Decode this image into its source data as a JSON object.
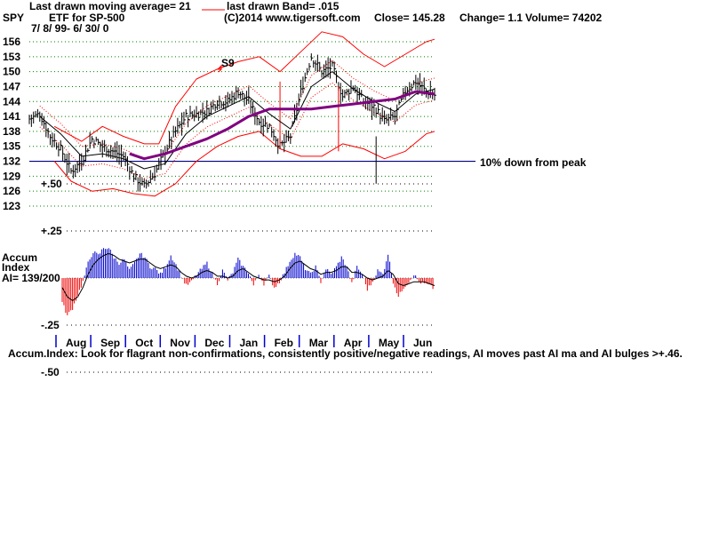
{
  "header": {
    "symbol": "SPY",
    "ma_label": "Last drawn moving average= 21",
    "band_label": "last drawn Band= .015",
    "subtitle": "ETF for SP-500",
    "copyright": "(C)2014 www.tigersoft.com",
    "close_label": "Close=  145.28",
    "change_label": "Change= 1.1",
    "volume_label": "Volume= 74202",
    "date_range": "7/ 8/ 99- 6/ 30/ 0"
  },
  "annotations": {
    "sell_signal": "S9",
    "ref_line_label": "10% down from peak",
    "footnote": "Accum.Index: Look for flagrant non-confirmations, consistently positive/negative readings, AI moves past AI ma and AI bulges >+.46."
  },
  "accum_label": {
    "line1": "Accum",
    "line2": "Index",
    "line3": "AI= 139/200"
  },
  "colors": {
    "price": "#000000",
    "ma21": "#000000",
    "ma_long": "#800080",
    "bands": "#ff0000",
    "ref_line": "#000080",
    "ai_positive": "#0000cc",
    "ai_negative": "#ee0000",
    "grid": "#008000"
  },
  "chart_data": [
    {
      "type": "ohlc",
      "ylim": [
        123,
        158
      ],
      "y_ticks": [
        "156",
        "153",
        "150",
        "147",
        "144",
        "141",
        "138",
        "135",
        "132",
        "129",
        "126",
        "123"
      ],
      "ref_line_value": 132,
      "x_months": [
        "Aug",
        "Sep",
        "Oct",
        "Nov",
        "Dec",
        "Jan",
        "Feb",
        "Mar",
        "Apr",
        "May",
        "Jun"
      ],
      "close_points": [
        {
          "x": 0,
          "y": 140.5
        },
        {
          "x": 5,
          "y": 141.5
        },
        {
          "x": 10,
          "y": 137
        },
        {
          "x": 15,
          "y": 134.5
        },
        {
          "x": 20,
          "y": 130
        },
        {
          "x": 25,
          "y": 132
        },
        {
          "x": 30,
          "y": 136.5
        },
        {
          "x": 35,
          "y": 135
        },
        {
          "x": 40,
          "y": 134
        },
        {
          "x": 45,
          "y": 133
        },
        {
          "x": 50,
          "y": 129
        },
        {
          "x": 55,
          "y": 127
        },
        {
          "x": 60,
          "y": 129.5
        },
        {
          "x": 65,
          "y": 134
        },
        {
          "x": 70,
          "y": 138
        },
        {
          "x": 75,
          "y": 141
        },
        {
          "x": 80,
          "y": 141.5
        },
        {
          "x": 85,
          "y": 142
        },
        {
          "x": 90,
          "y": 144
        },
        {
          "x": 95,
          "y": 144
        },
        {
          "x": 100,
          "y": 146
        },
        {
          "x": 105,
          "y": 144
        },
        {
          "x": 110,
          "y": 140
        },
        {
          "x": 115,
          "y": 139
        },
        {
          "x": 120,
          "y": 135
        },
        {
          "x": 125,
          "y": 137
        },
        {
          "x": 130,
          "y": 146
        },
        {
          "x": 135,
          "y": 153
        },
        {
          "x": 140,
          "y": 150
        },
        {
          "x": 145,
          "y": 151
        },
        {
          "x": 150,
          "y": 145
        },
        {
          "x": 155,
          "y": 147
        },
        {
          "x": 160,
          "y": 144
        },
        {
          "x": 165,
          "y": 143
        },
        {
          "x": 170,
          "y": 140
        },
        {
          "x": 175,
          "y": 141
        },
        {
          "x": 180,
          "y": 146
        },
        {
          "x": 185,
          "y": 148
        },
        {
          "x": 190,
          "y": 146
        },
        {
          "x": 194,
          "y": 145.3
        }
      ],
      "ma21_points": [
        {
          "x": 5,
          "y": 141
        },
        {
          "x": 15,
          "y": 137.5
        },
        {
          "x": 25,
          "y": 133
        },
        {
          "x": 35,
          "y": 133.5
        },
        {
          "x": 45,
          "y": 132.5
        },
        {
          "x": 55,
          "y": 130.5
        },
        {
          "x": 65,
          "y": 131.5
        },
        {
          "x": 75,
          "y": 137.5
        },
        {
          "x": 85,
          "y": 141
        },
        {
          "x": 95,
          "y": 143
        },
        {
          "x": 105,
          "y": 145
        },
        {
          "x": 115,
          "y": 141.5
        },
        {
          "x": 125,
          "y": 138.5
        },
        {
          "x": 135,
          "y": 147
        },
        {
          "x": 145,
          "y": 150
        },
        {
          "x": 155,
          "y": 146.5
        },
        {
          "x": 165,
          "y": 144
        },
        {
          "x": 175,
          "y": 142
        },
        {
          "x": 185,
          "y": 145.5
        },
        {
          "x": 194,
          "y": 146.5
        }
      ],
      "ma_long_points": [
        {
          "x": 48,
          "y": 133.5
        },
        {
          "x": 55,
          "y": 132.5
        },
        {
          "x": 65,
          "y": 133.5
        },
        {
          "x": 75,
          "y": 135
        },
        {
          "x": 85,
          "y": 136.5
        },
        {
          "x": 95,
          "y": 138.5
        },
        {
          "x": 105,
          "y": 141
        },
        {
          "x": 115,
          "y": 142.5
        },
        {
          "x": 125,
          "y": 142.5
        },
        {
          "x": 135,
          "y": 142.5
        },
        {
          "x": 145,
          "y": 143
        },
        {
          "x": 155,
          "y": 143.5
        },
        {
          "x": 165,
          "y": 144
        },
        {
          "x": 175,
          "y": 144.5
        },
        {
          "x": 185,
          "y": 146
        },
        {
          "x": 194,
          "y": 145.5
        }
      ],
      "upper_band_points": [
        {
          "x": 12,
          "y": 139
        },
        {
          "x": 25,
          "y": 136
        },
        {
          "x": 35,
          "y": 139
        },
        {
          "x": 45,
          "y": 137
        },
        {
          "x": 55,
          "y": 135.5
        },
        {
          "x": 62,
          "y": 135.5
        },
        {
          "x": 70,
          "y": 143
        },
        {
          "x": 80,
          "y": 148.5
        },
        {
          "x": 90,
          "y": 150.5
        },
        {
          "x": 100,
          "y": 152
        },
        {
          "x": 110,
          "y": 153
        },
        {
          "x": 120,
          "y": 150
        },
        {
          "x": 130,
          "y": 154
        },
        {
          "x": 140,
          "y": 158
        },
        {
          "x": 150,
          "y": 157
        },
        {
          "x": 160,
          "y": 153.5
        },
        {
          "x": 170,
          "y": 151
        },
        {
          "x": 180,
          "y": 153.5
        },
        {
          "x": 190,
          "y": 156
        },
        {
          "x": 194,
          "y": 156.5
        }
      ],
      "lower_band_points": [
        {
          "x": 12,
          "y": 132
        },
        {
          "x": 20,
          "y": 128
        },
        {
          "x": 30,
          "y": 126
        },
        {
          "x": 40,
          "y": 126.5
        },
        {
          "x": 50,
          "y": 125.5
        },
        {
          "x": 60,
          "y": 125
        },
        {
          "x": 70,
          "y": 127.5
        },
        {
          "x": 80,
          "y": 132
        },
        {
          "x": 90,
          "y": 135
        },
        {
          "x": 100,
          "y": 137
        },
        {
          "x": 110,
          "y": 138
        },
        {
          "x": 120,
          "y": 134.5
        },
        {
          "x": 130,
          "y": 133
        },
        {
          "x": 140,
          "y": 133
        },
        {
          "x": 150,
          "y": 135.5
        },
        {
          "x": 160,
          "y": 134.5
        },
        {
          "x": 170,
          "y": 132.5
        },
        {
          "x": 180,
          "y": 134
        },
        {
          "x": 190,
          "y": 137.5
        },
        {
          "x": 194,
          "y": 138
        }
      ],
      "spikes": [
        {
          "x": 120,
          "high": 148,
          "low": 135
        },
        {
          "x": 148,
          "high": 147,
          "low": 134
        },
        {
          "x": 166,
          "high": 137,
          "low": 127.5
        }
      ]
    },
    {
      "type": "bar",
      "name": "Accum Index",
      "ylim": [
        -0.5,
        0.5
      ],
      "y_ticks": [
        "+.50",
        "+.25",
        "-.25",
        "-.50"
      ],
      "values": [
        -0.13,
        -0.2,
        -0.16,
        -0.09,
        -0.02,
        0.08,
        0.14,
        0.12,
        0.16,
        0.16,
        0.11,
        0.08,
        0.1,
        0.04,
        0.08,
        0.13,
        0.11,
        0.06,
        0.05,
        0.02,
        0.06,
        0.12,
        0.07,
        0.01,
        -0.04,
        -0.02,
        0.02,
        0.05,
        0.08,
        0.02,
        -0.03,
        0.04,
        -0.01,
        0.03,
        0.1,
        0.06,
        0.03,
        -0.04,
        0.02,
        -0.03,
        0.01,
        -0.05,
        -0.02,
        0.03,
        0.09,
        0.13,
        0.11,
        0.05,
        0.02,
        0.06,
        -0.02,
        0.05,
        0.02,
        0.06,
        0.11,
        0.06,
        -0.03,
        0.06,
        0.02,
        -0.06,
        -0.02,
        0.04,
        0.02,
        0.13,
        -0.02,
        -0.1,
        -0.05,
        -0.02,
        0.02,
        -0.02,
        -0.03,
        -0.04,
        -0.06
      ],
      "ma_values": [
        -0.05,
        -0.1,
        -0.12,
        -0.1,
        -0.05,
        0.02,
        0.07,
        0.1,
        0.12,
        0.13,
        0.12,
        0.1,
        0.09,
        0.08,
        0.09,
        0.1,
        0.1,
        0.08,
        0.06,
        0.05,
        0.06,
        0.07,
        0.06,
        0.03,
        0.01,
        0.0,
        0.01,
        0.03,
        0.04,
        0.03,
        0.01,
        0.01,
        0.0,
        0.01,
        0.04,
        0.05,
        0.03,
        0.01,
        0.0,
        -0.01,
        -0.01,
        -0.02,
        -0.01,
        0.01,
        0.05,
        0.08,
        0.09,
        0.07,
        0.05,
        0.04,
        0.02,
        0.03,
        0.03,
        0.04,
        0.06,
        0.06,
        0.03,
        0.03,
        0.02,
        0.0,
        -0.01,
        0.0,
        0.01,
        0.04,
        0.02,
        -0.03,
        -0.04,
        -0.03,
        -0.02,
        -0.02,
        -0.02,
        -0.03,
        -0.04
      ]
    }
  ]
}
